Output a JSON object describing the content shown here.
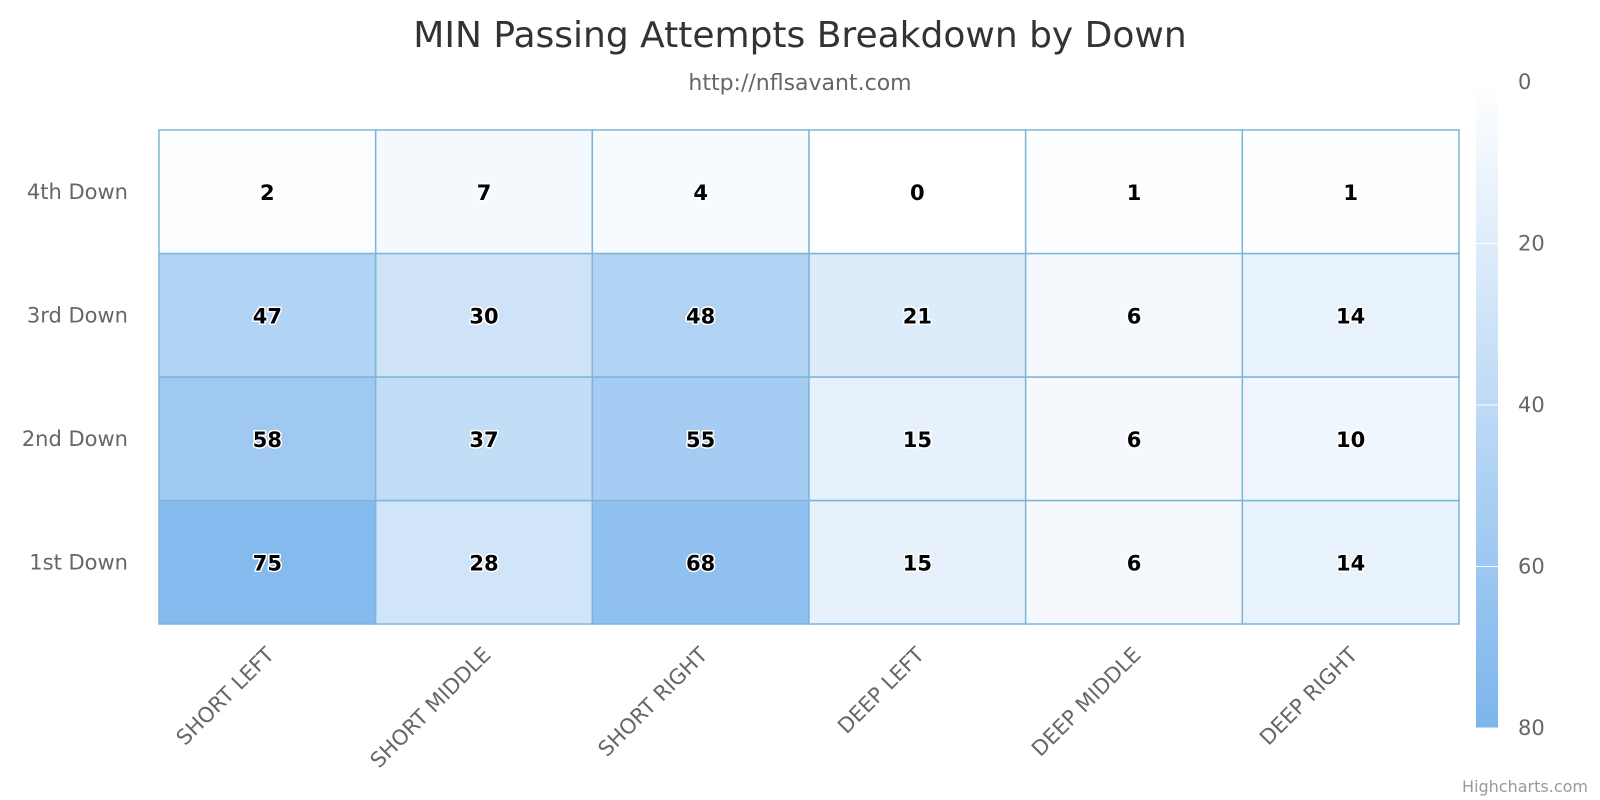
{
  "chart_data": {
    "type": "heatmap",
    "title": "MIN Passing Attempts Breakdown by Down",
    "subtitle": "http://nflsavant.com",
    "x_categories": [
      "SHORT LEFT",
      "SHORT MIDDLE",
      "SHORT RIGHT",
      "DEEP LEFT",
      "DEEP MIDDLE",
      "DEEP RIGHT"
    ],
    "y_categories": [
      "1st Down",
      "2nd Down",
      "3rd Down",
      "4th Down"
    ],
    "values": [
      [
        75,
        28,
        68,
        15,
        6,
        14
      ],
      [
        58,
        37,
        55,
        15,
        6,
        10
      ],
      [
        47,
        30,
        48,
        21,
        6,
        14
      ],
      [
        2,
        7,
        4,
        0,
        1,
        1
      ]
    ],
    "color_axis": {
      "min": 0,
      "max": 80,
      "ticks": [
        0,
        20,
        40,
        60,
        80
      ],
      "min_color": "#FFFFFF",
      "max_color": "#7CB5EC",
      "position": "right"
    },
    "cell_border_color": "#7FB5D8",
    "credits": "Highcharts.com"
  }
}
